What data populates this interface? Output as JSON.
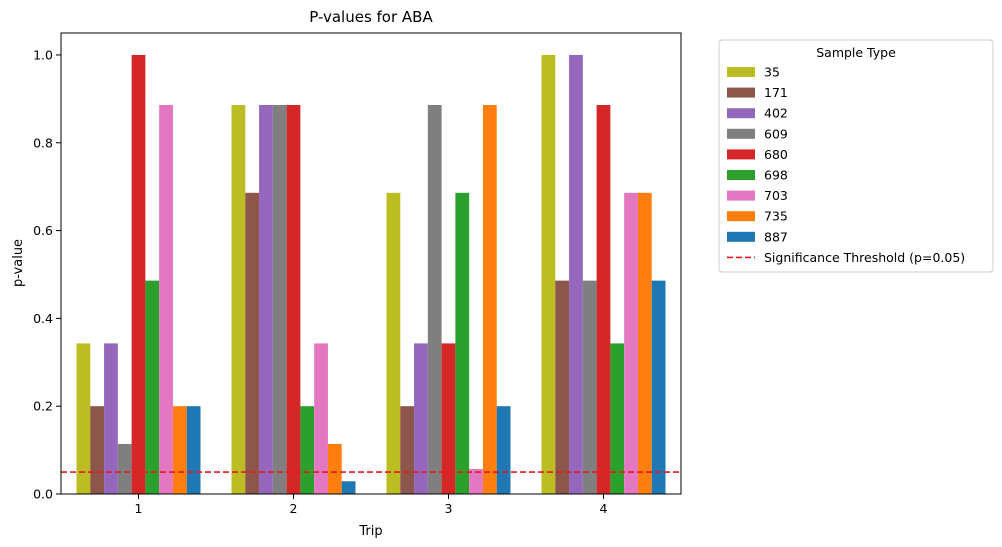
{
  "chart_data": {
    "type": "bar",
    "title": "P-values for ABA",
    "xlabel": "Trip",
    "ylabel": "p-value",
    "categories": [
      "1",
      "2",
      "3",
      "4"
    ],
    "ylim": [
      0,
      1.05
    ],
    "yticks": [
      "0.0",
      "0.2",
      "0.4",
      "0.6",
      "0.8",
      "1.0"
    ],
    "legend_title": "Sample Type",
    "legend_position": "outside-top-right",
    "series": [
      {
        "name": "35",
        "color": "#bcbd22",
        "values": [
          0.343,
          0.886,
          0.686,
          1.0
        ]
      },
      {
        "name": "171",
        "color": "#8c564b",
        "values": [
          0.2,
          0.686,
          0.2,
          0.486
        ]
      },
      {
        "name": "402",
        "color": "#9467bd",
        "values": [
          0.343,
          0.886,
          0.343,
          1.0
        ]
      },
      {
        "name": "609",
        "color": "#7f7f7f",
        "values": [
          0.114,
          0.886,
          0.886,
          0.486
        ]
      },
      {
        "name": "680",
        "color": "#d62728",
        "values": [
          1.0,
          0.886,
          0.343,
          0.886
        ]
      },
      {
        "name": "698",
        "color": "#2ca02c",
        "values": [
          0.486,
          0.2,
          0.686,
          0.343
        ]
      },
      {
        "name": "703",
        "color": "#e377c2",
        "values": [
          0.886,
          0.343,
          0.057,
          0.686
        ]
      },
      {
        "name": "735",
        "color": "#ff7f0e",
        "values": [
          0.2,
          0.114,
          0.886,
          0.686
        ]
      },
      {
        "name": "887",
        "color": "#1f77b4",
        "values": [
          0.2,
          0.029,
          0.2,
          0.486
        ]
      }
    ],
    "threshold": {
      "value": 0.05,
      "label": "Significance Threshold (p=0.05)",
      "color": "#e31a1c",
      "style": "dashed"
    }
  }
}
